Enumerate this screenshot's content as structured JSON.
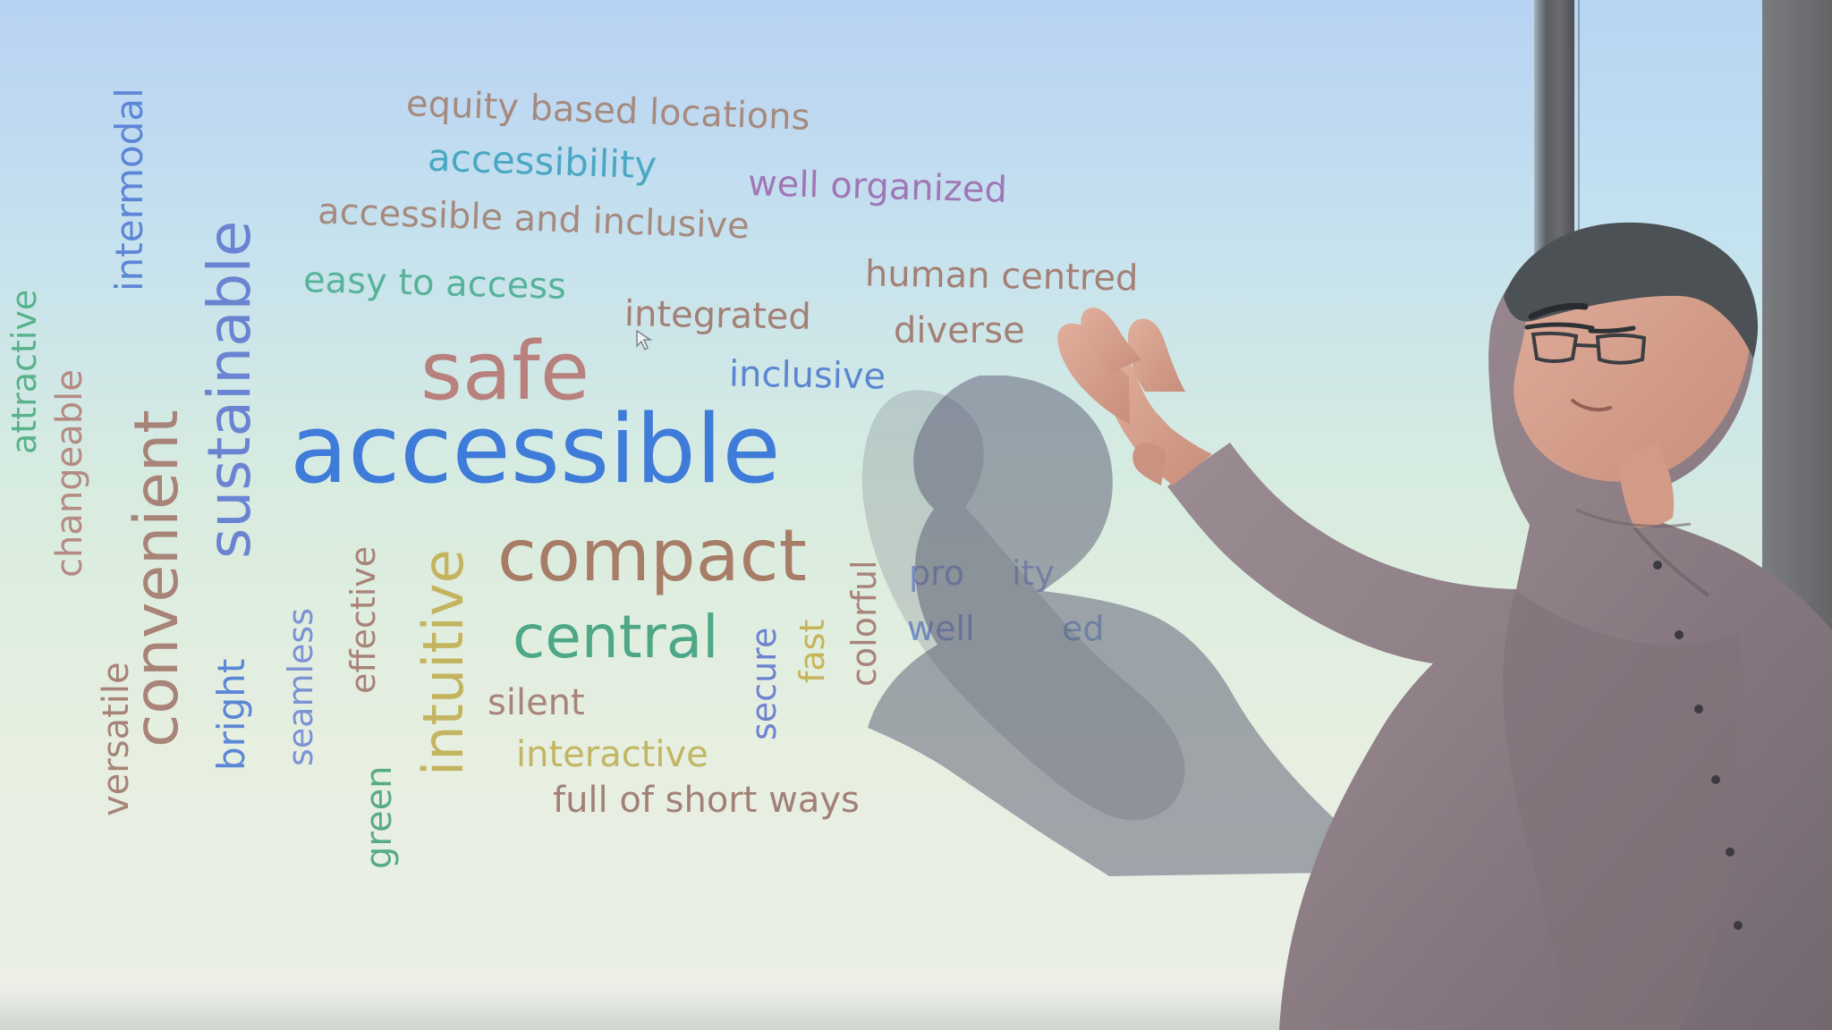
{
  "image_domain": "Natural-Image",
  "word_cloud": {
    "words": [
      {
        "text": "attractive",
        "color": "#58b38b"
      },
      {
        "text": "changeable",
        "color": "#b38b83"
      },
      {
        "text": "intermodal",
        "color": "#5b87d6"
      },
      {
        "text": "convenient",
        "color": "#a88378"
      },
      {
        "text": "sustainable",
        "color": "#6a84d1"
      },
      {
        "text": "equity based locations",
        "color": "#a58a7f"
      },
      {
        "text": "accessibility",
        "color": "#4aa8c3"
      },
      {
        "text": "well organized",
        "color": "#9f77b6"
      },
      {
        "text": "accessible and inclusive",
        "color": "#a58a7f"
      },
      {
        "text": "human centred",
        "color": "#a28075"
      },
      {
        "text": "easy to access",
        "color": "#56b39a"
      },
      {
        "text": "integrated",
        "color": "#a28075"
      },
      {
        "text": "diverse",
        "color": "#a28075"
      },
      {
        "text": "safe",
        "color": "#b8817d"
      },
      {
        "text": "inclusive",
        "color": "#5b86d1"
      },
      {
        "text": "accessible",
        "color": "#3f7cd9"
      },
      {
        "text": "compact",
        "color": "#a77d68"
      },
      {
        "text": "central",
        "color": "#4ea888"
      },
      {
        "text": "versatile",
        "color": "#a88378"
      },
      {
        "text": "bright",
        "color": "#5b87d6"
      },
      {
        "text": "seamless",
        "color": "#7d92d3"
      },
      {
        "text": "effective",
        "color": "#a88378"
      },
      {
        "text": "green",
        "color": "#58ac85"
      },
      {
        "text": "intuitive",
        "color": "#c4b45f"
      },
      {
        "text": "silent",
        "color": "#a88378"
      },
      {
        "text": "interactive",
        "color": "#c2b563"
      },
      {
        "text": "full of short ways",
        "color": "#a28075"
      },
      {
        "text": "secure",
        "color": "#6d83d0"
      },
      {
        "text": "fast",
        "color": "#c7b55b"
      },
      {
        "text": "colorful",
        "color": "#a88378"
      },
      {
        "text": "pro",
        "color": "#6b86d1"
      },
      {
        "text": "ity",
        "color": "#6b86d1"
      },
      {
        "text": "well",
        "color": "#5b86d1"
      },
      {
        "text": "ed",
        "color": "#5b86d1"
      }
    ]
  },
  "scene": {
    "presenter_shirt": "#8f7f87",
    "presenter_skin": "#d39b86",
    "presenter_hair": "#4c5155",
    "screen_border": "#686970"
  }
}
